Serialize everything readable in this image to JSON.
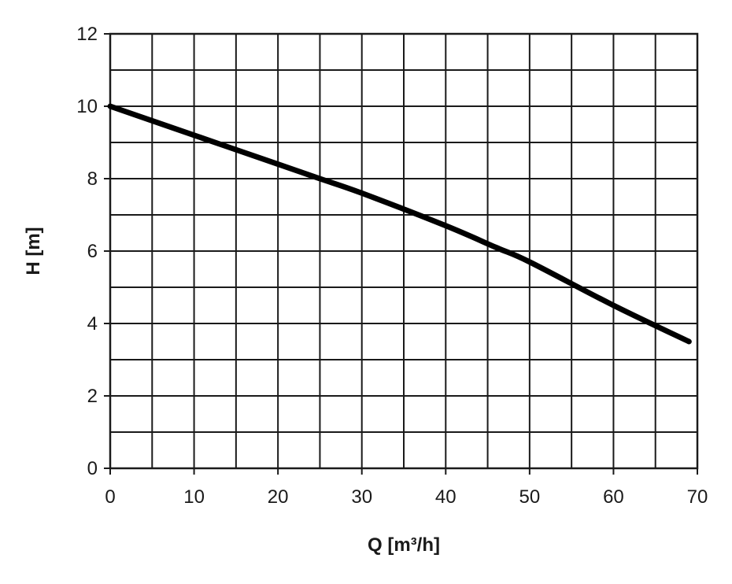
{
  "chart_data": {
    "type": "line",
    "xlabel": "Q [m³/h]",
    "ylabel": "H [m]",
    "xlim": [
      0,
      70
    ],
    "ylim": [
      0,
      12
    ],
    "x_ticks": [
      "0",
      "10",
      "20",
      "30",
      "40",
      "50",
      "60",
      "70"
    ],
    "y_ticks": [
      "0",
      "2",
      "4",
      "6",
      "8",
      "10",
      "12"
    ],
    "x_grid_step": 5,
    "y_grid_step": 1,
    "grid": true,
    "series": [
      {
        "x": [
          0,
          10,
          20,
          25,
          30,
          40,
          46,
          50,
          60,
          69
        ],
        "y": [
          10,
          9.2,
          8.4,
          8.0,
          7.6,
          6.7,
          6.1,
          5.7,
          4.5,
          3.5
        ],
        "color": "#000000"
      }
    ]
  }
}
